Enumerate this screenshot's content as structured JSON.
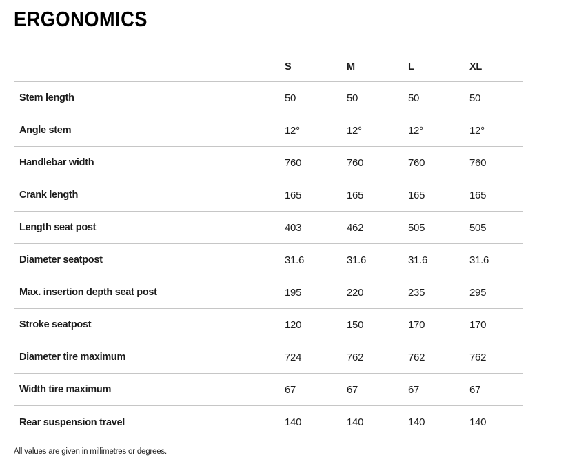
{
  "page": {
    "title": "ERGONOMICS",
    "footnote": "All values are given in millimetres or degrees."
  },
  "table": {
    "columns": [
      "S",
      "M",
      "L",
      "XL"
    ],
    "rows": [
      {
        "label": "Stem length",
        "values": [
          "50",
          "50",
          "50",
          "50"
        ]
      },
      {
        "label": "Angle stem",
        "values": [
          "12°",
          "12°",
          "12°",
          "12°"
        ]
      },
      {
        "label": "Handlebar width",
        "values": [
          "760",
          "760",
          "760",
          "760"
        ]
      },
      {
        "label": "Crank length",
        "values": [
          "165",
          "165",
          "165",
          "165"
        ]
      },
      {
        "label": "Length seat post",
        "values": [
          "403",
          "462",
          "505",
          "505"
        ]
      },
      {
        "label": "Diameter seatpost",
        "values": [
          "31.6",
          "31.6",
          "31.6",
          "31.6"
        ]
      },
      {
        "label": "Max. insertion depth seat post",
        "values": [
          "195",
          "220",
          "235",
          "295"
        ]
      },
      {
        "label": "Stroke seatpost",
        "values": [
          "120",
          "150",
          "170",
          "170"
        ]
      },
      {
        "label": "Diameter tire maximum",
        "values": [
          "724",
          "762",
          "762",
          "762"
        ]
      },
      {
        "label": "Width tire maximum",
        "values": [
          "67",
          "67",
          "67",
          "67"
        ]
      },
      {
        "label": "Rear suspension travel",
        "values": [
          "140",
          "140",
          "140",
          "140"
        ]
      }
    ]
  },
  "colors": {
    "border": "#c6c6c6",
    "text": "#1d1d1d",
    "background": "#ffffff"
  }
}
